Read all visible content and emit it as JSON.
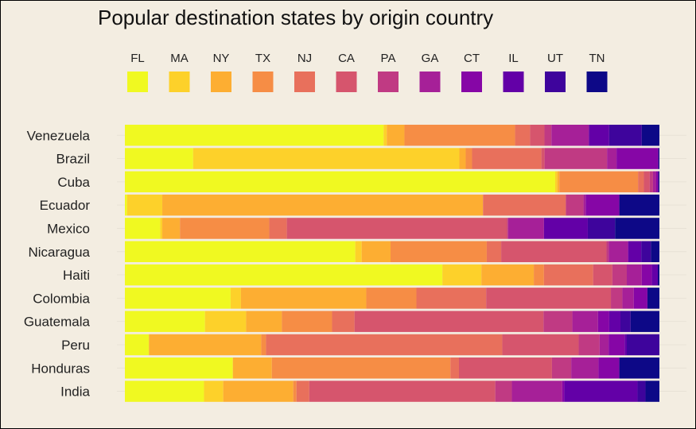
{
  "chart_data": {
    "type": "bar",
    "orientation": "horizontal",
    "stacked": "proportional",
    "title": "Popular destination states by origin country",
    "legend_position": "top",
    "grid": true,
    "xlim": [
      0,
      1
    ],
    "categories": [
      "Venezuela",
      "Brazil",
      "Cuba",
      "Ecuador",
      "Mexico",
      "Nicaragua",
      "Haiti",
      "Colombia",
      "Guatemala",
      "Peru",
      "Honduras",
      "India"
    ],
    "series": [
      {
        "name": "FL",
        "color": "#f0f921",
        "values": [
          0.484,
          0.129,
          0.805,
          0.004,
          0.066,
          0.431,
          0.594,
          0.194,
          0.15,
          0.045,
          0.202,
          0.148
        ]
      },
      {
        "name": "MA",
        "color": "#fdd12a",
        "values": [
          0.006,
          0.503,
          0.004,
          0.066,
          0.004,
          0.012,
          0.073,
          0.019,
          0.077,
          0.0,
          0.0,
          0.036
        ]
      },
      {
        "name": "NY",
        "color": "#fdae32",
        "values": [
          0.033,
          0.012,
          0.004,
          0.6,
          0.033,
          0.054,
          0.098,
          0.23,
          0.067,
          0.21,
          0.073,
          0.131
        ]
      },
      {
        "name": "TX",
        "color": "#f68d45",
        "values": [
          0.207,
          0.012,
          0.147,
          0.0,
          0.167,
          0.18,
          0.019,
          0.092,
          0.094,
          0.009,
          0.334,
          0.006
        ]
      },
      {
        "name": "NJ",
        "color": "#e8705c",
        "values": [
          0.028,
          0.131,
          0.011,
          0.155,
          0.033,
          0.027,
          0.092,
          0.128,
          0.042,
          0.442,
          0.016,
          0.024
        ]
      },
      {
        "name": "CA",
        "color": "#d6556d",
        "values": [
          0.027,
          0.006,
          0.011,
          0.0,
          0.412,
          0.197,
          0.036,
          0.229,
          0.354,
          0.143,
          0.174,
          0.348
        ]
      },
      {
        "name": "PA",
        "color": "#c03a83",
        "values": [
          0.013,
          0.118,
          0.006,
          0.033,
          0.002,
          0.004,
          0.027,
          0.021,
          0.054,
          0.039,
          0.036,
          0.031
        ]
      },
      {
        "name": "GA",
        "color": "#a62098",
        "values": [
          0.07,
          0.018,
          0.006,
          0.004,
          0.067,
          0.036,
          0.028,
          0.021,
          0.048,
          0.017,
          0.051,
          0.094
        ]
      },
      {
        "name": "CT",
        "color": "#8606a6",
        "values": [
          0.0,
          0.079,
          0.004,
          0.063,
          0.0,
          0.001,
          0.019,
          0.025,
          0.021,
          0.03,
          0.039,
          0.004
        ]
      },
      {
        "name": "IL",
        "color": "#6300a7",
        "values": [
          0.038,
          0.0,
          0.0,
          0.0,
          0.082,
          0.024,
          0.011,
          0.0,
          0.021,
          0.004,
          0.0,
          0.137
        ]
      },
      {
        "name": "UT",
        "color": "#3e049c",
        "values": [
          0.061,
          0.0,
          0.0,
          0.0,
          0.051,
          0.018,
          0.0,
          0.0,
          0.019,
          0.061,
          0.0,
          0.015
        ]
      },
      {
        "name": "TN",
        "color": "#0d0887",
        "values": [
          0.033,
          0.002,
          0.002,
          0.075,
          0.083,
          0.016,
          0.003,
          0.022,
          0.054,
          0.0,
          0.075,
          0.026
        ]
      }
    ]
  }
}
